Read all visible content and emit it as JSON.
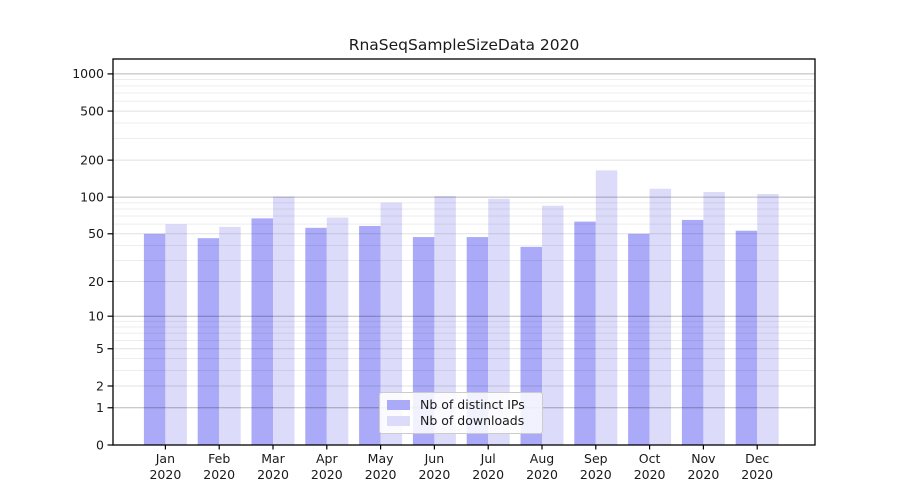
{
  "chart_data": {
    "type": "bar",
    "title": "RnaSeqSampleSizeData 2020",
    "scale": "log1p",
    "categories": [
      "Jan",
      "Feb",
      "Mar",
      "Apr",
      "May",
      "Jun",
      "Jul",
      "Aug",
      "Sep",
      "Oct",
      "Nov",
      "Dec"
    ],
    "category_sublabel": "2020",
    "series": [
      {
        "name": "Nb of distinct IPs",
        "color": "#aaaaf8",
        "values": [
          50,
          46,
          67,
          56,
          58,
          47,
          47,
          39,
          63,
          50,
          65,
          53
        ]
      },
      {
        "name": "Nb of downloads",
        "color": "#dcdcfa",
        "values": [
          60,
          57,
          101,
          68,
          90,
          102,
          97,
          85,
          165,
          117,
          110,
          106
        ]
      }
    ],
    "y_ticks": [
      0,
      1,
      2,
      5,
      10,
      20,
      50,
      100,
      200,
      500,
      1000
    ],
    "y_minor_ticks": [
      3,
      4,
      6,
      7,
      8,
      9,
      30,
      40,
      60,
      70,
      80,
      90,
      300,
      400,
      600,
      700,
      800,
      900
    ],
    "y_major_grid_values": [
      1,
      10,
      100,
      1000
    ],
    "ylim": [
      0,
      1320
    ],
    "grid": {
      "major_color": "rgba(0,0,0,0.28)",
      "labeled_minor_color": "rgba(0,0,0,0.12)",
      "minor_color": "rgba(0,0,0,0.07)"
    },
    "axis_color": "#000000",
    "text_color": "#1a1a1a",
    "legend": {
      "position": "bottom-center"
    }
  }
}
